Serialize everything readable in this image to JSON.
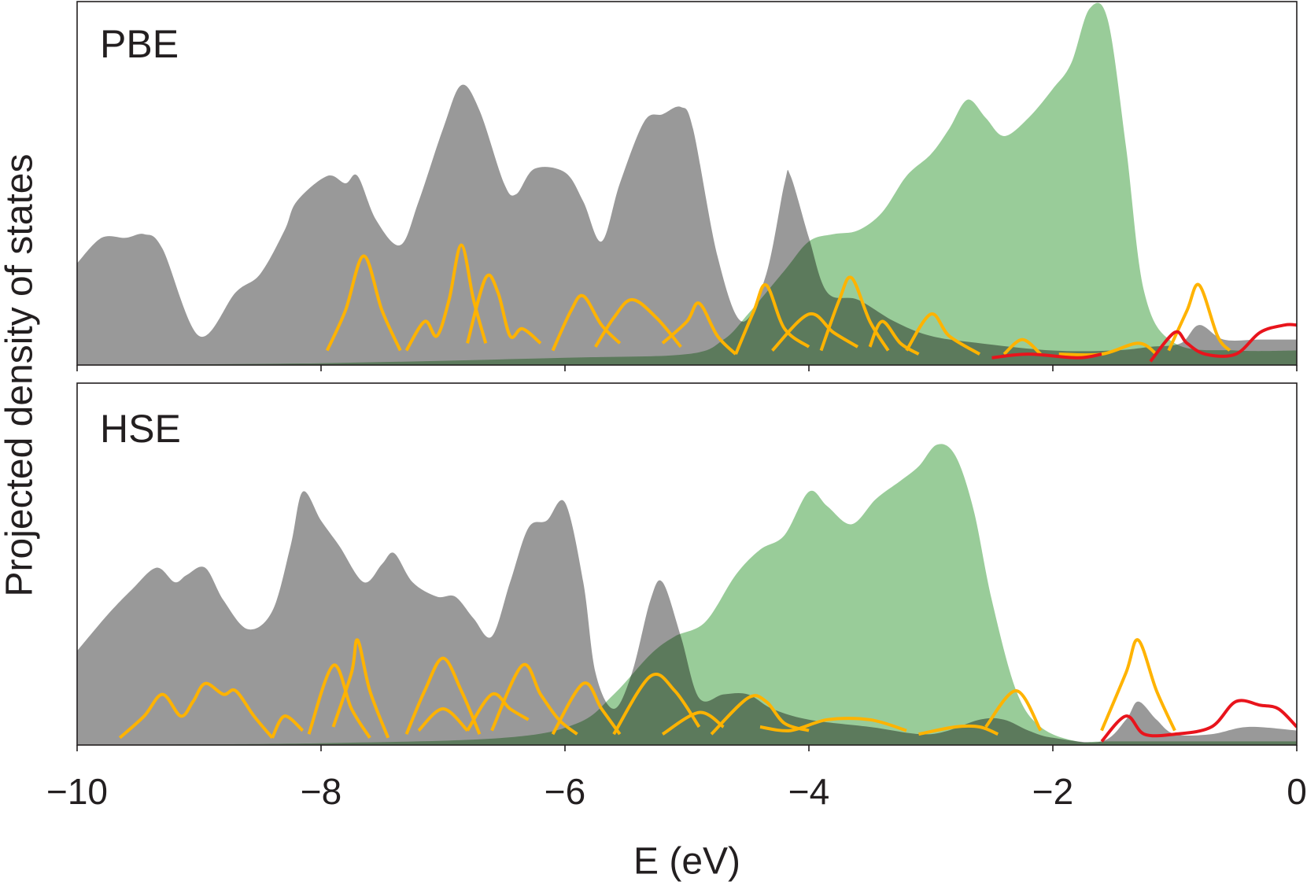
{
  "chart_data": [
    {
      "type": "line",
      "label": "PBE",
      "ylabel": "Projected density of states",
      "xlim": [
        -10,
        0
      ],
      "ylim": [
        0,
        100
      ],
      "series": [
        {
          "color": "#999999",
          "fill": true,
          "x": [
            -10,
            -9.8,
            -9.6,
            -9.45,
            -9.3,
            -9.0,
            -8.7,
            -8.5,
            -8.3,
            -8.2,
            -7.95,
            -7.8,
            -7.7,
            -7.55,
            -7.35,
            -7.2,
            -7.0,
            -6.85,
            -6.7,
            -6.5,
            -6.4,
            -6.25,
            -6.0,
            -5.85,
            -5.7,
            -5.55,
            -5.35,
            -5.2,
            -5.05,
            -4.95,
            -4.75,
            -4.55,
            -4.35,
            -4.2,
            -4.15,
            -4.0,
            -3.85,
            -3.6,
            -3.3,
            -3.0,
            -2.6,
            -2.0,
            -1.5,
            -1.2,
            -0.95,
            -0.8,
            -0.6,
            -0.3,
            0
          ],
          "values": [
            28,
            35,
            35,
            36,
            32,
            8,
            20,
            25,
            37,
            45,
            52,
            50,
            52,
            40,
            33,
            45,
            65,
            77,
            70,
            50,
            47,
            54,
            53,
            45,
            34,
            50,
            67,
            69,
            71,
            65,
            30,
            12,
            25,
            50,
            52,
            35,
            20,
            18,
            12,
            8,
            6,
            4,
            4,
            5,
            6,
            11,
            7,
            7,
            7
          ]
        },
        {
          "color": "#99cc99",
          "fill": true,
          "x": [
            -10,
            -8,
            -6,
            -5,
            -4.7,
            -4.5,
            -4.2,
            -4.0,
            -3.8,
            -3.6,
            -3.4,
            -3.2,
            -3.0,
            -2.85,
            -2.7,
            -2.55,
            -2.4,
            -2.2,
            -2.0,
            -1.85,
            -1.7,
            -1.55,
            -1.4,
            -1.25,
            -1.0,
            -0.5,
            0
          ],
          "values": [
            0,
            0.5,
            2,
            3,
            7,
            14,
            26,
            34,
            36,
            37,
            42,
            52,
            58,
            65,
            73,
            68,
            63,
            68,
            76,
            83,
            98,
            95,
            60,
            20,
            6,
            4,
            4
          ]
        },
        {
          "color": "#ffb300",
          "x": [
            -7.95,
            -7.8,
            -7.65,
            -7.5,
            -7.35
          ],
          "values": [
            4,
            15,
            30,
            15,
            4
          ]
        },
        {
          "color": "#ffb300",
          "x": [
            -7.3,
            -7.15,
            -7.05,
            -6.95,
            -6.85,
            -6.75,
            -6.65
          ],
          "values": [
            4,
            12,
            8,
            18,
            33,
            18,
            6
          ]
        },
        {
          "color": "#ffb300",
          "x": [
            -6.8,
            -6.65,
            -6.55,
            -6.45,
            -6.35,
            -6.2
          ],
          "values": [
            6,
            24,
            20,
            8,
            10,
            6
          ]
        },
        {
          "color": "#ffb300",
          "x": [
            -6.1,
            -5.95,
            -5.85,
            -5.7,
            -5.55
          ],
          "values": [
            4,
            15,
            19,
            11,
            6
          ]
        },
        {
          "color": "#ffb300",
          "x": [
            -5.75,
            -5.6,
            -5.45,
            -5.25,
            -5.05
          ],
          "values": [
            5,
            13,
            18,
            13,
            5
          ]
        },
        {
          "color": "#ffb300",
          "x": [
            -5.2,
            -5.0,
            -4.9,
            -4.75,
            -4.6
          ],
          "values": [
            6,
            12,
            17,
            8,
            3
          ]
        },
        {
          "color": "#ffb300",
          "x": [
            -4.6,
            -4.45,
            -4.35,
            -4.2,
            -4.0
          ],
          "values": [
            3,
            15,
            22,
            10,
            5
          ]
        },
        {
          "color": "#ffb300",
          "x": [
            -4.3,
            -4.0,
            -3.8,
            -3.6
          ],
          "values": [
            4,
            14,
            9,
            5
          ]
        },
        {
          "color": "#ffb300",
          "x": [
            -3.9,
            -3.75,
            -3.65,
            -3.5,
            -3.35
          ],
          "values": [
            4,
            18,
            24,
            12,
            4
          ]
        },
        {
          "color": "#ffb300",
          "x": [
            -3.5,
            -3.4,
            -3.25,
            -3.1
          ],
          "values": [
            5,
            12,
            6,
            3
          ]
        },
        {
          "color": "#ffb300",
          "x": [
            -3.2,
            -3.0,
            -2.85,
            -2.6
          ],
          "values": [
            4,
            14,
            8,
            3
          ]
        },
        {
          "color": "#ffb300",
          "x": [
            -2.4,
            -2.25,
            -2.1
          ],
          "values": [
            3,
            7,
            3
          ]
        },
        {
          "color": "#ffb300",
          "x": [
            -1.95,
            -1.6,
            -1.3,
            -1.15
          ],
          "values": [
            3,
            3,
            6,
            3
          ]
        },
        {
          "color": "#ffb300",
          "x": [
            -1.05,
            -0.9,
            -0.8,
            -0.65,
            -0.55
          ],
          "values": [
            4,
            15,
            22,
            8,
            4
          ]
        },
        {
          "color": "#e8141c",
          "x": [
            -2.5,
            -2.2,
            -1.8,
            -1.6,
            -1.4,
            -1.2,
            -1.0,
            -0.9,
            -0.75,
            -0.5,
            -0.3,
            -0.1,
            0
          ],
          "values": [
            2,
            3,
            2,
            3,
            null,
            1,
            9,
            6,
            3,
            3,
            9,
            11,
            11
          ]
        }
      ]
    },
    {
      "type": "line",
      "label": "HSE",
      "xlabel": "E (eV)",
      "xlim": [
        -10,
        0
      ],
      "ylim": [
        0,
        100
      ],
      "xticks": [
        {
          "value": -10,
          "label": "−10"
        },
        {
          "value": -8,
          "label": "−8"
        },
        {
          "value": -6,
          "label": "−6"
        },
        {
          "value": -4,
          "label": "−4"
        },
        {
          "value": -2,
          "label": "−2"
        },
        0
      ],
      "series": [
        {
          "color": "#999999",
          "fill": true,
          "x": [
            -10,
            -9.75,
            -9.55,
            -9.35,
            -9.2,
            -9.1,
            -8.95,
            -8.8,
            -8.6,
            -8.4,
            -8.25,
            -8.15,
            -8.0,
            -7.85,
            -7.65,
            -7.5,
            -7.4,
            -7.25,
            -7.05,
            -6.9,
            -6.75,
            -6.6,
            -6.45,
            -6.3,
            -6.15,
            -6.0,
            -5.85,
            -5.75,
            -5.6,
            -5.45,
            -5.3,
            -5.2,
            -5.05,
            -4.9,
            -4.7,
            -4.5,
            -4.3,
            -4.0,
            -3.5,
            -3.0,
            -2.6,
            -2.4,
            -2.2,
            -2.0,
            -1.6,
            -1.4,
            -1.3,
            -1.15,
            -1.0,
            -0.7,
            -0.4,
            0
          ],
          "values": [
            26,
            36,
            43,
            49,
            45,
            47,
            49,
            40,
            32,
            37,
            55,
            70,
            62,
            55,
            45,
            50,
            53,
            45,
            41,
            41,
            35,
            30,
            45,
            60,
            62,
            67,
            45,
            20,
            10,
            20,
            40,
            45,
            30,
            13,
            14,
            14,
            10,
            7,
            5,
            3,
            7,
            7,
            4,
            2,
            1,
            7,
            12,
            7,
            3,
            3,
            5,
            4
          ]
        },
        {
          "color": "#99cc99",
          "fill": true,
          "x": [
            -10,
            -8,
            -6.5,
            -5.9,
            -5.6,
            -5.3,
            -5.1,
            -4.85,
            -4.6,
            -4.4,
            -4.2,
            -4.0,
            -3.85,
            -3.65,
            -3.45,
            -3.25,
            -3.1,
            -2.95,
            -2.8,
            -2.65,
            -2.5,
            -2.3,
            -2.1,
            -1.8,
            -1.5,
            0
          ],
          "values": [
            0,
            0.5,
            2,
            6,
            14,
            25,
            30,
            34,
            47,
            54,
            58,
            70,
            66,
            61,
            68,
            73,
            77,
            83,
            80,
            65,
            40,
            15,
            5,
            1,
            1,
            1
          ]
        },
        {
          "color": "#ffb300",
          "x": [
            -9.65,
            -9.45,
            -9.3,
            -9.15,
            -9.05,
            -8.95,
            -8.8,
            -8.7,
            -8.55,
            -8.4
          ],
          "values": [
            2,
            8,
            14,
            8,
            12,
            17,
            14,
            15,
            8,
            2
          ]
        },
        {
          "color": "#ffb300",
          "x": [
            -8.4,
            -8.3,
            -8.15
          ],
          "values": [
            2,
            8,
            4
          ]
        },
        {
          "color": "#ffb300",
          "x": [
            -8.1,
            -7.9,
            -7.75,
            -7.6
          ],
          "values": [
            3,
            22,
            10,
            2
          ]
        },
        {
          "color": "#ffb300",
          "x": [
            -7.9,
            -7.75,
            -7.7,
            -7.6,
            -7.45
          ],
          "values": [
            5,
            20,
            29,
            15,
            2
          ]
        },
        {
          "color": "#ffb300",
          "x": [
            -7.3,
            -7.15,
            -7.0,
            -6.85,
            -6.7
          ],
          "values": [
            3,
            15,
            24,
            15,
            3
          ]
        },
        {
          "color": "#ffb300",
          "x": [
            -7.2,
            -7.0,
            -6.8
          ],
          "values": [
            4,
            10,
            4
          ]
        },
        {
          "color": "#ffb300",
          "x": [
            -6.8,
            -6.6,
            -6.45,
            -6.3
          ],
          "values": [
            4,
            14,
            10,
            7
          ]
        },
        {
          "color": "#ffb300",
          "x": [
            -6.6,
            -6.35,
            -6.2,
            -6.05,
            -5.9
          ],
          "values": [
            4,
            22,
            14,
            7,
            3
          ]
        },
        {
          "color": "#ffb300",
          "x": [
            -6.1,
            -5.85,
            -5.7,
            -5.55
          ],
          "values": [
            3,
            17,
            10,
            3
          ]
        },
        {
          "color": "#ffb300",
          "x": [
            -5.6,
            -5.3,
            -5.1,
            -4.9
          ],
          "values": [
            3,
            19,
            15,
            5
          ]
        },
        {
          "color": "#ffb300",
          "x": [
            -5.2,
            -4.9,
            -4.7
          ],
          "values": [
            3,
            9,
            5
          ]
        },
        {
          "color": "#ffb300",
          "x": [
            -4.8,
            -4.5,
            -4.35,
            -4.2,
            -4.0
          ],
          "values": [
            3,
            13,
            12,
            6,
            4
          ]
        },
        {
          "color": "#ffb300",
          "x": [
            -4.4,
            -4.15,
            -3.85,
            -3.5,
            -3.2
          ],
          "values": [
            5,
            4,
            7,
            7,
            4
          ]
        },
        {
          "color": "#ffb300",
          "x": [
            -3.1,
            -2.8,
            -2.6,
            -2.45
          ],
          "values": [
            3,
            5,
            5,
            3
          ]
        },
        {
          "color": "#ffb300",
          "x": [
            -2.55,
            -2.3,
            -2.1
          ],
          "values": [
            5,
            15,
            4
          ]
        },
        {
          "color": "#ffb300",
          "x": [
            -1.6,
            -1.4,
            -1.3,
            -1.15,
            -1.0
          ],
          "values": [
            4,
            20,
            29,
            15,
            4
          ]
        },
        {
          "color": "#e8141c",
          "x": [
            -1.6,
            -1.4,
            -1.25,
            -1.0,
            -0.7,
            -0.5,
            -0.3,
            -0.15,
            0
          ],
          "values": [
            1,
            8,
            3,
            3,
            5,
            12,
            11,
            10,
            5
          ]
        }
      ]
    }
  ]
}
